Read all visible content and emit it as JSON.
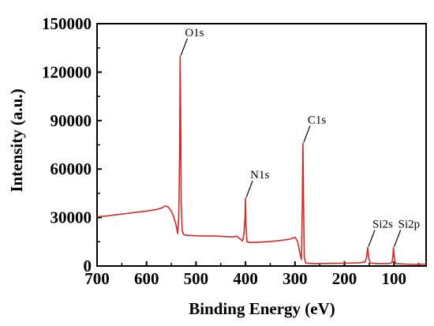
{
  "chart_data": {
    "type": "line",
    "xlabel": "Binding Energy (eV)",
    "ylabel": "Intensity (a.u.)",
    "xlim": [
      700,
      35
    ],
    "ylim": [
      0,
      150000
    ],
    "x_reversed": true,
    "x_ticks": [
      700,
      600,
      500,
      400,
      300,
      200,
      100
    ],
    "y_ticks": [
      0,
      30000,
      60000,
      90000,
      120000,
      150000
    ],
    "series": [
      {
        "color": "#d62728",
        "points": [
          [
            700,
            30500
          ],
          [
            680,
            31000
          ],
          [
            660,
            31800
          ],
          [
            640,
            32500
          ],
          [
            620,
            33300
          ],
          [
            600,
            34000
          ],
          [
            580,
            35000
          ],
          [
            570,
            35800
          ],
          [
            562,
            37200
          ],
          [
            556,
            36500
          ],
          [
            550,
            34000
          ],
          [
            545,
            30500
          ],
          [
            540,
            25000
          ],
          [
            537,
            20000
          ],
          [
            535,
            30000
          ],
          [
            533,
            70000
          ],
          [
            532,
            130000
          ],
          [
            531,
            90000
          ],
          [
            530,
            40000
          ],
          [
            528,
            22000
          ],
          [
            525,
            19500
          ],
          [
            520,
            19000
          ],
          [
            500,
            18700
          ],
          [
            480,
            18600
          ],
          [
            460,
            18500
          ],
          [
            440,
            18200
          ],
          [
            425,
            18000
          ],
          [
            418,
            18500
          ],
          [
            412,
            17000
          ],
          [
            406,
            15500
          ],
          [
            403,
            20000
          ],
          [
            401,
            30000
          ],
          [
            400,
            42000
          ],
          [
            399,
            25000
          ],
          [
            397,
            15000
          ],
          [
            390,
            14500
          ],
          [
            370,
            14800
          ],
          [
            350,
            15200
          ],
          [
            330,
            15800
          ],
          [
            310,
            16600
          ],
          [
            300,
            17800
          ],
          [
            295,
            15500
          ],
          [
            290,
            8000
          ],
          [
            287,
            4000
          ],
          [
            285,
            40000
          ],
          [
            284,
            76000
          ],
          [
            283,
            45000
          ],
          [
            281,
            5000
          ],
          [
            278,
            1800
          ],
          [
            260,
            1500
          ],
          [
            230,
            1600
          ],
          [
            200,
            1700
          ],
          [
            170,
            2000
          ],
          [
            158,
            2500
          ],
          [
            155,
            6000
          ],
          [
            153,
            11500
          ],
          [
            151,
            5000
          ],
          [
            148,
            1800
          ],
          [
            130,
            1500
          ],
          [
            110,
            1500
          ],
          [
            104,
            2000
          ],
          [
            102,
            6000
          ],
          [
            101,
            11500
          ],
          [
            99,
            5000
          ],
          [
            97,
            1500
          ],
          [
            80,
            1200
          ],
          [
            60,
            1000
          ],
          [
            40,
            1100
          ],
          [
            35,
            1200
          ]
        ]
      }
    ],
    "annotations": [
      {
        "text": "O1s",
        "x": 532,
        "y": 130000
      },
      {
        "text": "N1s",
        "x": 400,
        "y": 42000
      },
      {
        "text": "C1s",
        "x": 284,
        "y": 76000
      },
      {
        "text": "Si2s",
        "x": 153,
        "y": 11500
      },
      {
        "text": "Si2p",
        "x": 101,
        "y": 11500
      }
    ],
    "grid": false
  }
}
